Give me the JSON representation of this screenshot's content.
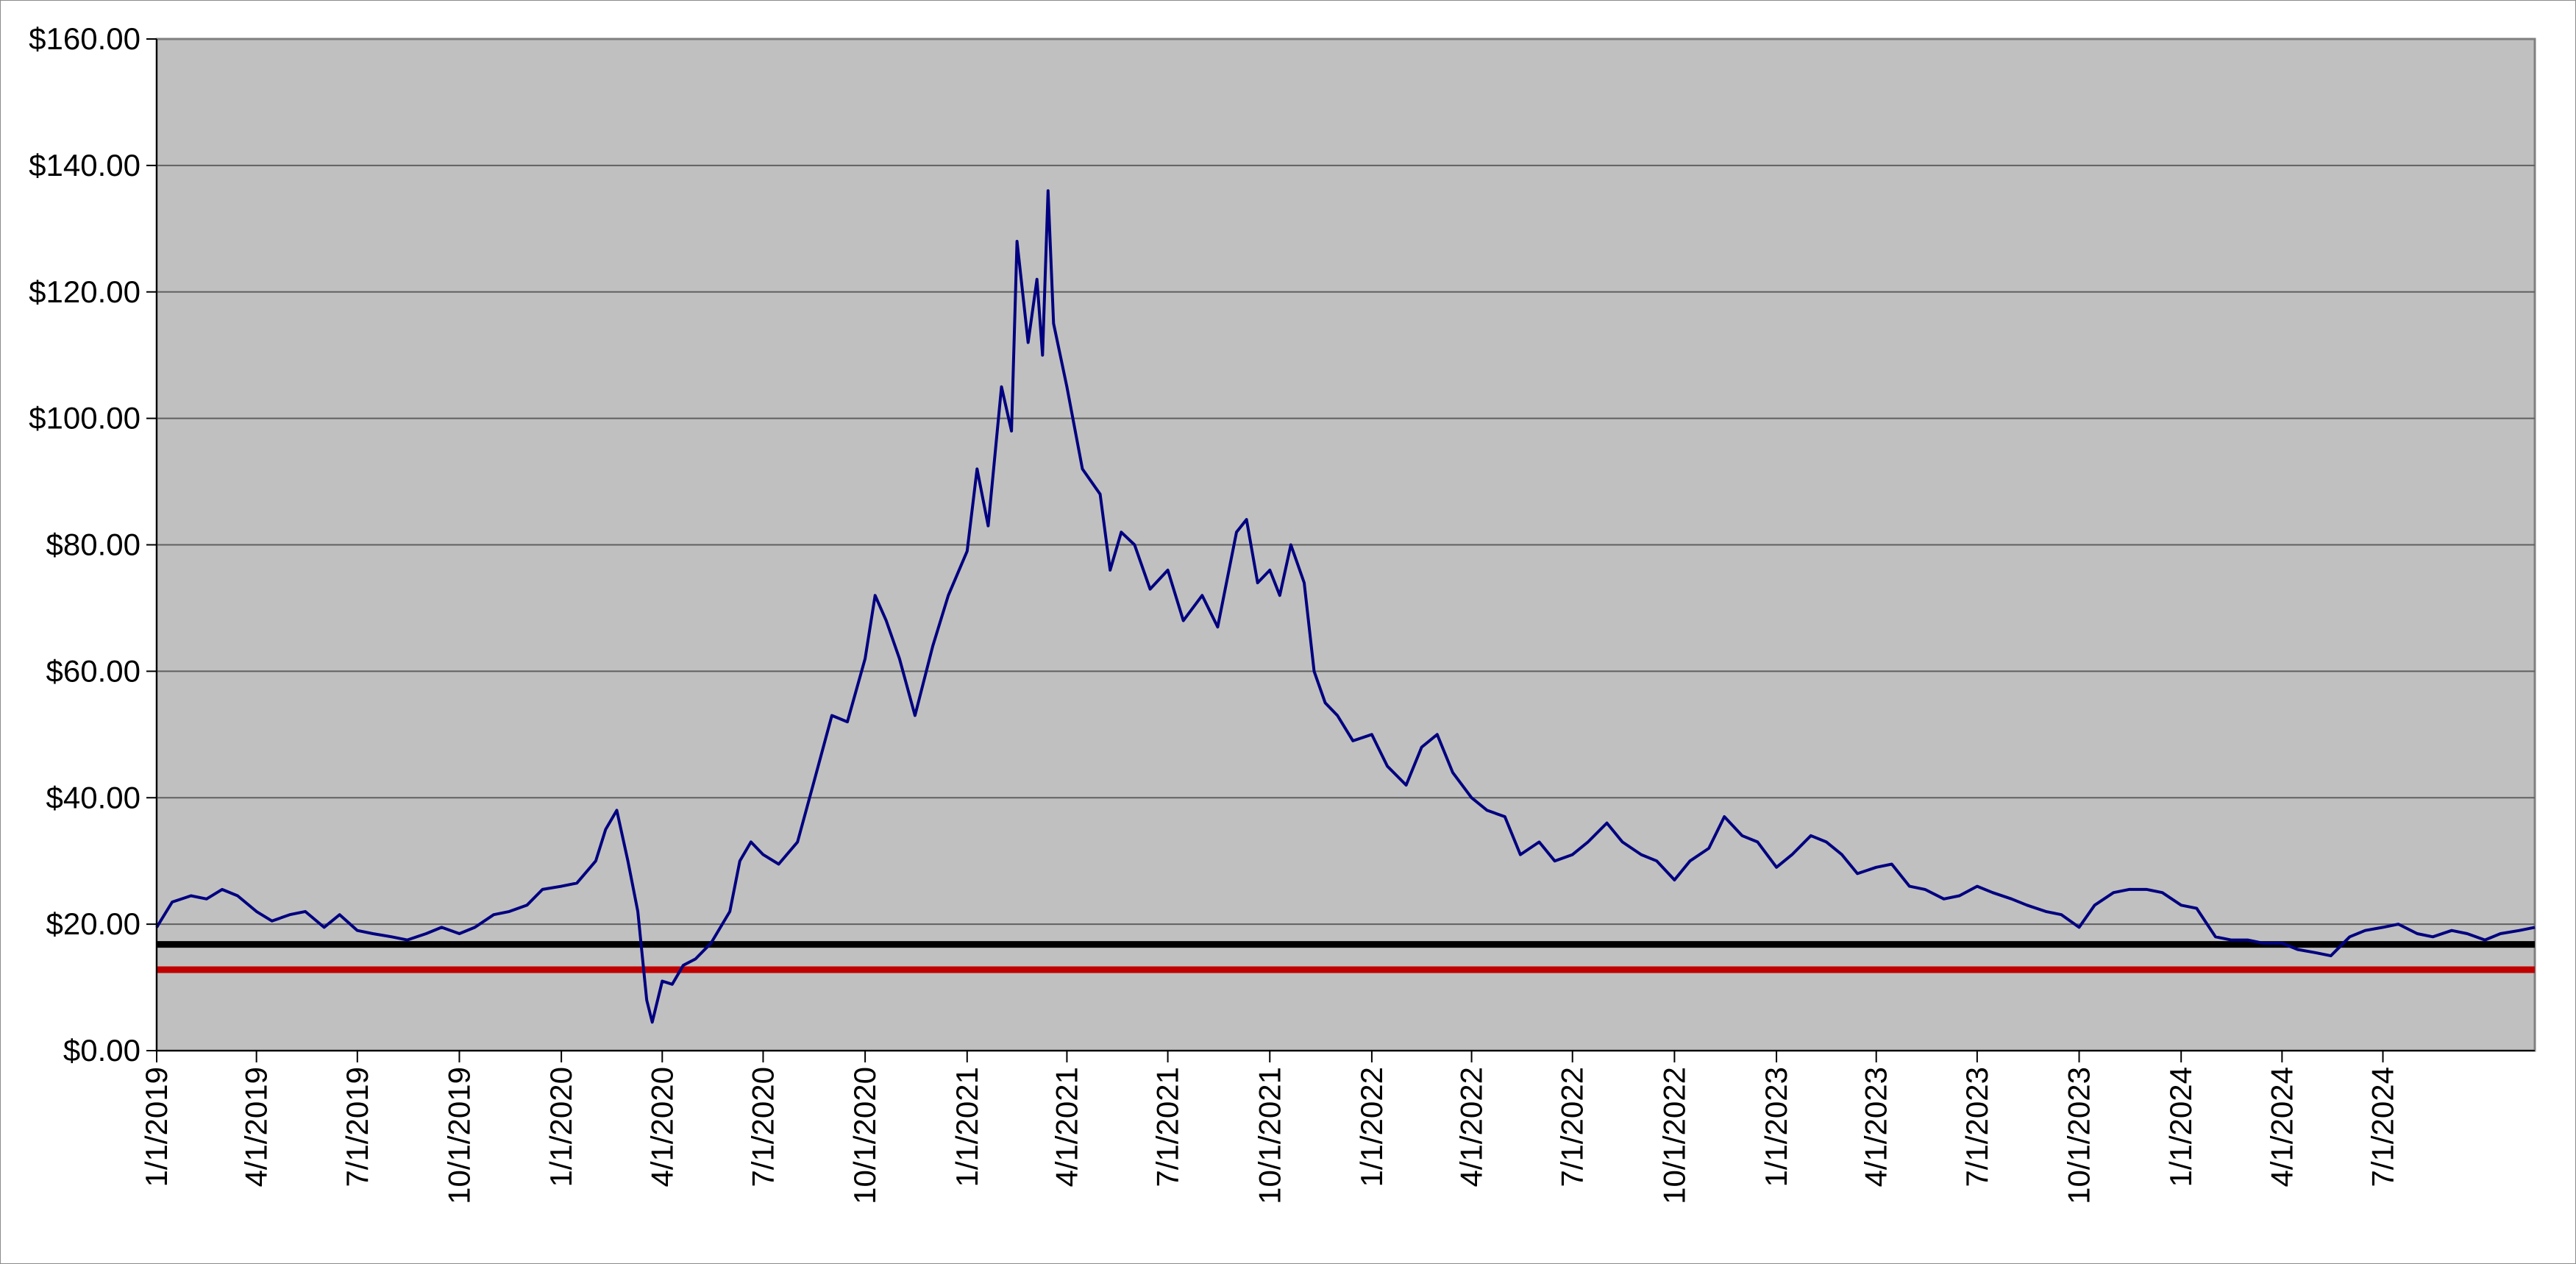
{
  "chart_data": {
    "type": "line",
    "title": "",
    "xlabel": "",
    "ylabel": "",
    "ylim": [
      0,
      160
    ],
    "xlim": [
      "2019-01-01",
      "2024-11-15"
    ],
    "grid": {
      "horizontal": true,
      "vertical": false
    },
    "legend": "none",
    "colors": {
      "plot_background": "#c0c0c0",
      "price_line": "#000080",
      "black_line": "#000000",
      "red_line": "#c00000",
      "gridline": "#606060"
    },
    "y_ticks": [
      {
        "value": 0,
        "label": "$0.00"
      },
      {
        "value": 20,
        "label": "$20.00"
      },
      {
        "value": 40,
        "label": "$40.00"
      },
      {
        "value": 60,
        "label": "$60.00"
      },
      {
        "value": 80,
        "label": "$80.00"
      },
      {
        "value": 100,
        "label": "$100.00"
      },
      {
        "value": 120,
        "label": "$120.00"
      },
      {
        "value": 140,
        "label": "$140.00"
      },
      {
        "value": 160,
        "label": "$160.00"
      }
    ],
    "x_ticks": [
      {
        "date": "2019-01-01",
        "label": "1/1/2019"
      },
      {
        "date": "2019-04-01",
        "label": "4/1/2019"
      },
      {
        "date": "2019-07-01",
        "label": "7/1/2019"
      },
      {
        "date": "2019-10-01",
        "label": "10/1/2019"
      },
      {
        "date": "2020-01-01",
        "label": "1/1/2020"
      },
      {
        "date": "2020-04-01",
        "label": "4/1/2020"
      },
      {
        "date": "2020-07-01",
        "label": "7/1/2020"
      },
      {
        "date": "2020-10-01",
        "label": "10/1/2020"
      },
      {
        "date": "2021-01-01",
        "label": "1/1/2021"
      },
      {
        "date": "2021-04-01",
        "label": "4/1/2021"
      },
      {
        "date": "2021-07-01",
        "label": "7/1/2021"
      },
      {
        "date": "2021-10-01",
        "label": "10/1/2021"
      },
      {
        "date": "2022-01-01",
        "label": "1/1/2022"
      },
      {
        "date": "2022-04-01",
        "label": "4/1/2022"
      },
      {
        "date": "2022-07-01",
        "label": "7/1/2022"
      },
      {
        "date": "2022-10-01",
        "label": "10/1/2022"
      },
      {
        "date": "2023-01-01",
        "label": "1/1/2023"
      },
      {
        "date": "2023-04-01",
        "label": "4/1/2023"
      },
      {
        "date": "2023-07-01",
        "label": "7/1/2023"
      },
      {
        "date": "2023-10-01",
        "label": "10/1/2023"
      },
      {
        "date": "2024-01-01",
        "label": "1/1/2024"
      },
      {
        "date": "2024-04-01",
        "label": "4/1/2024"
      },
      {
        "date": "2024-07-01",
        "label": "7/1/2024"
      }
    ],
    "horizontal_lines": [
      {
        "value": 16.8,
        "color": "#000000"
      },
      {
        "value": 12.8,
        "color": "#c00000"
      }
    ],
    "series": [
      {
        "color": "#000080",
        "points": [
          [
            "2019-01-01",
            19.5
          ],
          [
            "2019-01-15",
            23.5
          ],
          [
            "2019-02-01",
            24.5
          ],
          [
            "2019-02-15",
            24.0
          ],
          [
            "2019-03-01",
            25.5
          ],
          [
            "2019-03-15",
            24.5
          ],
          [
            "2019-04-01",
            22.0
          ],
          [
            "2019-04-15",
            20.5
          ],
          [
            "2019-05-01",
            21.5
          ],
          [
            "2019-05-15",
            22.0
          ],
          [
            "2019-06-01",
            19.5
          ],
          [
            "2019-06-15",
            21.5
          ],
          [
            "2019-07-01",
            19.0
          ],
          [
            "2019-07-15",
            18.5
          ],
          [
            "2019-08-01",
            18.0
          ],
          [
            "2019-08-15",
            17.5
          ],
          [
            "2019-09-01",
            18.5
          ],
          [
            "2019-09-15",
            19.5
          ],
          [
            "2019-10-01",
            18.5
          ],
          [
            "2019-10-15",
            19.5
          ],
          [
            "2019-11-01",
            21.5
          ],
          [
            "2019-11-15",
            22.0
          ],
          [
            "2019-12-01",
            23.0
          ],
          [
            "2019-12-15",
            25.5
          ],
          [
            "2020-01-01",
            26.0
          ],
          [
            "2020-01-15",
            26.5
          ],
          [
            "2020-02-01",
            30.0
          ],
          [
            "2020-02-10",
            35.0
          ],
          [
            "2020-02-20",
            38.0
          ],
          [
            "2020-03-01",
            30.0
          ],
          [
            "2020-03-10",
            22.0
          ],
          [
            "2020-03-18",
            8.0
          ],
          [
            "2020-03-23",
            4.5
          ],
          [
            "2020-04-01",
            11.0
          ],
          [
            "2020-04-10",
            10.5
          ],
          [
            "2020-04-20",
            13.5
          ],
          [
            "2020-05-01",
            14.5
          ],
          [
            "2020-05-15",
            17.0
          ],
          [
            "2020-06-01",
            22.0
          ],
          [
            "2020-06-10",
            30.0
          ],
          [
            "2020-06-20",
            33.0
          ],
          [
            "2020-07-01",
            31.0
          ],
          [
            "2020-07-15",
            29.5
          ],
          [
            "2020-08-01",
            33.0
          ],
          [
            "2020-08-15",
            42.0
          ],
          [
            "2020-09-01",
            53.0
          ],
          [
            "2020-09-15",
            52.0
          ],
          [
            "2020-10-01",
            62.0
          ],
          [
            "2020-10-10",
            72.0
          ],
          [
            "2020-10-20",
            68.0
          ],
          [
            "2020-11-01",
            62.0
          ],
          [
            "2020-11-15",
            53.0
          ],
          [
            "2020-12-01",
            64.0
          ],
          [
            "2020-12-15",
            72.0
          ],
          [
            "2021-01-01",
            79.0
          ],
          [
            "2021-01-10",
            92.0
          ],
          [
            "2021-01-20",
            83.0
          ],
          [
            "2021-02-01",
            105.0
          ],
          [
            "2021-02-10",
            98.0
          ],
          [
            "2021-02-15",
            128.0
          ],
          [
            "2021-02-25",
            112.0
          ],
          [
            "2021-03-05",
            122.0
          ],
          [
            "2021-03-10",
            110.0
          ],
          [
            "2021-03-15",
            136.0
          ],
          [
            "2021-03-20",
            115.0
          ],
          [
            "2021-04-01",
            105.0
          ],
          [
            "2021-04-15",
            92.0
          ],
          [
            "2021-05-01",
            88.0
          ],
          [
            "2021-05-10",
            76.0
          ],
          [
            "2021-05-20",
            82.0
          ],
          [
            "2021-06-01",
            80.0
          ],
          [
            "2021-06-15",
            73.0
          ],
          [
            "2021-07-01",
            76.0
          ],
          [
            "2021-07-15",
            68.0
          ],
          [
            "2021-08-01",
            72.0
          ],
          [
            "2021-08-15",
            67.0
          ],
          [
            "2021-09-01",
            82.0
          ],
          [
            "2021-09-10",
            84.0
          ],
          [
            "2021-09-20",
            74.0
          ],
          [
            "2021-10-01",
            76.0
          ],
          [
            "2021-10-10",
            72.0
          ],
          [
            "2021-10-20",
            80.0
          ],
          [
            "2021-11-01",
            74.0
          ],
          [
            "2021-11-10",
            60.0
          ],
          [
            "2021-11-20",
            55.0
          ],
          [
            "2021-12-01",
            53.0
          ],
          [
            "2021-12-15",
            49.0
          ],
          [
            "2022-01-01",
            50.0
          ],
          [
            "2022-01-15",
            45.0
          ],
          [
            "2022-02-01",
            42.0
          ],
          [
            "2022-02-15",
            48.0
          ],
          [
            "2022-03-01",
            50.0
          ],
          [
            "2022-03-15",
            44.0
          ],
          [
            "2022-04-01",
            40.0
          ],
          [
            "2022-04-15",
            38.0
          ],
          [
            "2022-05-01",
            37.0
          ],
          [
            "2022-05-15",
            31.0
          ],
          [
            "2022-06-01",
            33.0
          ],
          [
            "2022-06-15",
            30.0
          ],
          [
            "2022-07-01",
            31.0
          ],
          [
            "2022-07-15",
            33.0
          ],
          [
            "2022-08-01",
            36.0
          ],
          [
            "2022-08-15",
            33.0
          ],
          [
            "2022-09-01",
            31.0
          ],
          [
            "2022-09-15",
            30.0
          ],
          [
            "2022-10-01",
            27.0
          ],
          [
            "2022-10-15",
            30.0
          ],
          [
            "2022-11-01",
            32.0
          ],
          [
            "2022-11-15",
            37.0
          ],
          [
            "2022-12-01",
            34.0
          ],
          [
            "2022-12-15",
            33.0
          ],
          [
            "2023-01-01",
            29.0
          ],
          [
            "2023-01-15",
            31.0
          ],
          [
            "2023-02-01",
            34.0
          ],
          [
            "2023-02-15",
            33.0
          ],
          [
            "2023-03-01",
            31.0
          ],
          [
            "2023-03-15",
            28.0
          ],
          [
            "2023-04-01",
            29.0
          ],
          [
            "2023-04-15",
            29.5
          ],
          [
            "2023-05-01",
            26.0
          ],
          [
            "2023-05-15",
            25.5
          ],
          [
            "2023-06-01",
            24.0
          ],
          [
            "2023-06-15",
            24.5
          ],
          [
            "2023-07-01",
            26.0
          ],
          [
            "2023-07-15",
            25.0
          ],
          [
            "2023-08-01",
            24.0
          ],
          [
            "2023-08-15",
            23.0
          ],
          [
            "2023-09-01",
            22.0
          ],
          [
            "2023-09-15",
            21.5
          ],
          [
            "2023-10-01",
            19.5
          ],
          [
            "2023-10-15",
            23.0
          ],
          [
            "2023-11-01",
            25.0
          ],
          [
            "2023-11-15",
            25.5
          ],
          [
            "2023-12-01",
            25.5
          ],
          [
            "2023-12-15",
            25.0
          ],
          [
            "2024-01-01",
            23.0
          ],
          [
            "2024-01-15",
            22.5
          ],
          [
            "2024-02-01",
            18.0
          ],
          [
            "2024-02-15",
            17.5
          ],
          [
            "2024-03-01",
            17.5
          ],
          [
            "2024-03-15",
            17.0
          ],
          [
            "2024-04-01",
            17.0
          ],
          [
            "2024-04-15",
            16.0
          ],
          [
            "2024-05-01",
            15.5
          ],
          [
            "2024-05-15",
            15.0
          ],
          [
            "2024-06-01",
            18.0
          ],
          [
            "2024-06-15",
            19.0
          ],
          [
            "2024-07-01",
            19.5
          ],
          [
            "2024-07-15",
            20.0
          ],
          [
            "2024-08-01",
            18.5
          ],
          [
            "2024-08-15",
            18.0
          ],
          [
            "2024-09-01",
            19.0
          ],
          [
            "2024-09-15",
            18.5
          ],
          [
            "2024-10-01",
            17.5
          ],
          [
            "2024-10-15",
            18.5
          ],
          [
            "2024-11-01",
            19.0
          ],
          [
            "2024-11-15",
            19.5
          ]
        ]
      }
    ]
  }
}
